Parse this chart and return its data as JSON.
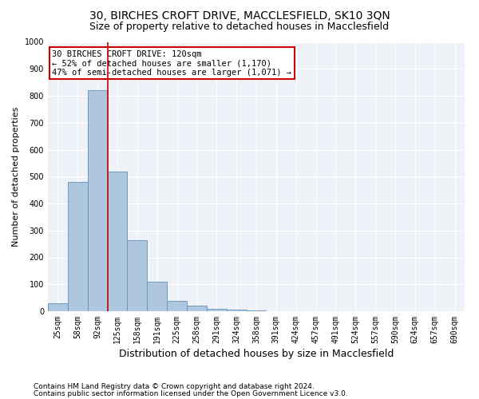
{
  "title": "30, BIRCHES CROFT DRIVE, MACCLESFIELD, SK10 3QN",
  "subtitle": "Size of property relative to detached houses in Macclesfield",
  "xlabel": "Distribution of detached houses by size in Macclesfield",
  "ylabel": "Number of detached properties",
  "footnote1": "Contains HM Land Registry data © Crown copyright and database right 2024.",
  "footnote2": "Contains public sector information licensed under the Open Government Licence v3.0.",
  "bin_labels": [
    "25sqm",
    "58sqm",
    "92sqm",
    "125sqm",
    "158sqm",
    "191sqm",
    "225sqm",
    "258sqm",
    "291sqm",
    "324sqm",
    "358sqm",
    "391sqm",
    "424sqm",
    "457sqm",
    "491sqm",
    "524sqm",
    "557sqm",
    "590sqm",
    "624sqm",
    "657sqm",
    "690sqm"
  ],
  "bar_values": [
    30,
    480,
    820,
    520,
    265,
    110,
    40,
    20,
    10,
    5,
    2,
    1,
    0,
    0,
    0,
    0,
    0,
    0,
    0,
    0,
    0
  ],
  "bar_color": "#aec6de",
  "bar_edge_color": "#6090b8",
  "background_color": "#eef2f8",
  "grid_color": "#ffffff",
  "vline_x": 2.5,
  "vline_color": "#cc0000",
  "annotation_text": "30 BIRCHES CROFT DRIVE: 120sqm\n← 52% of detached houses are smaller (1,170)\n47% of semi-detached houses are larger (1,071) →",
  "annotation_box_color": "#ffffff",
  "annotation_box_edge": "#cc0000",
  "ylim": [
    0,
    1000
  ],
  "yticks": [
    0,
    100,
    200,
    300,
    400,
    500,
    600,
    700,
    800,
    900,
    1000
  ],
  "title_fontsize": 10,
  "subtitle_fontsize": 9,
  "xlabel_fontsize": 9,
  "ylabel_fontsize": 8,
  "tick_fontsize": 7,
  "annotation_fontsize": 7.5,
  "footnote_fontsize": 6.5
}
